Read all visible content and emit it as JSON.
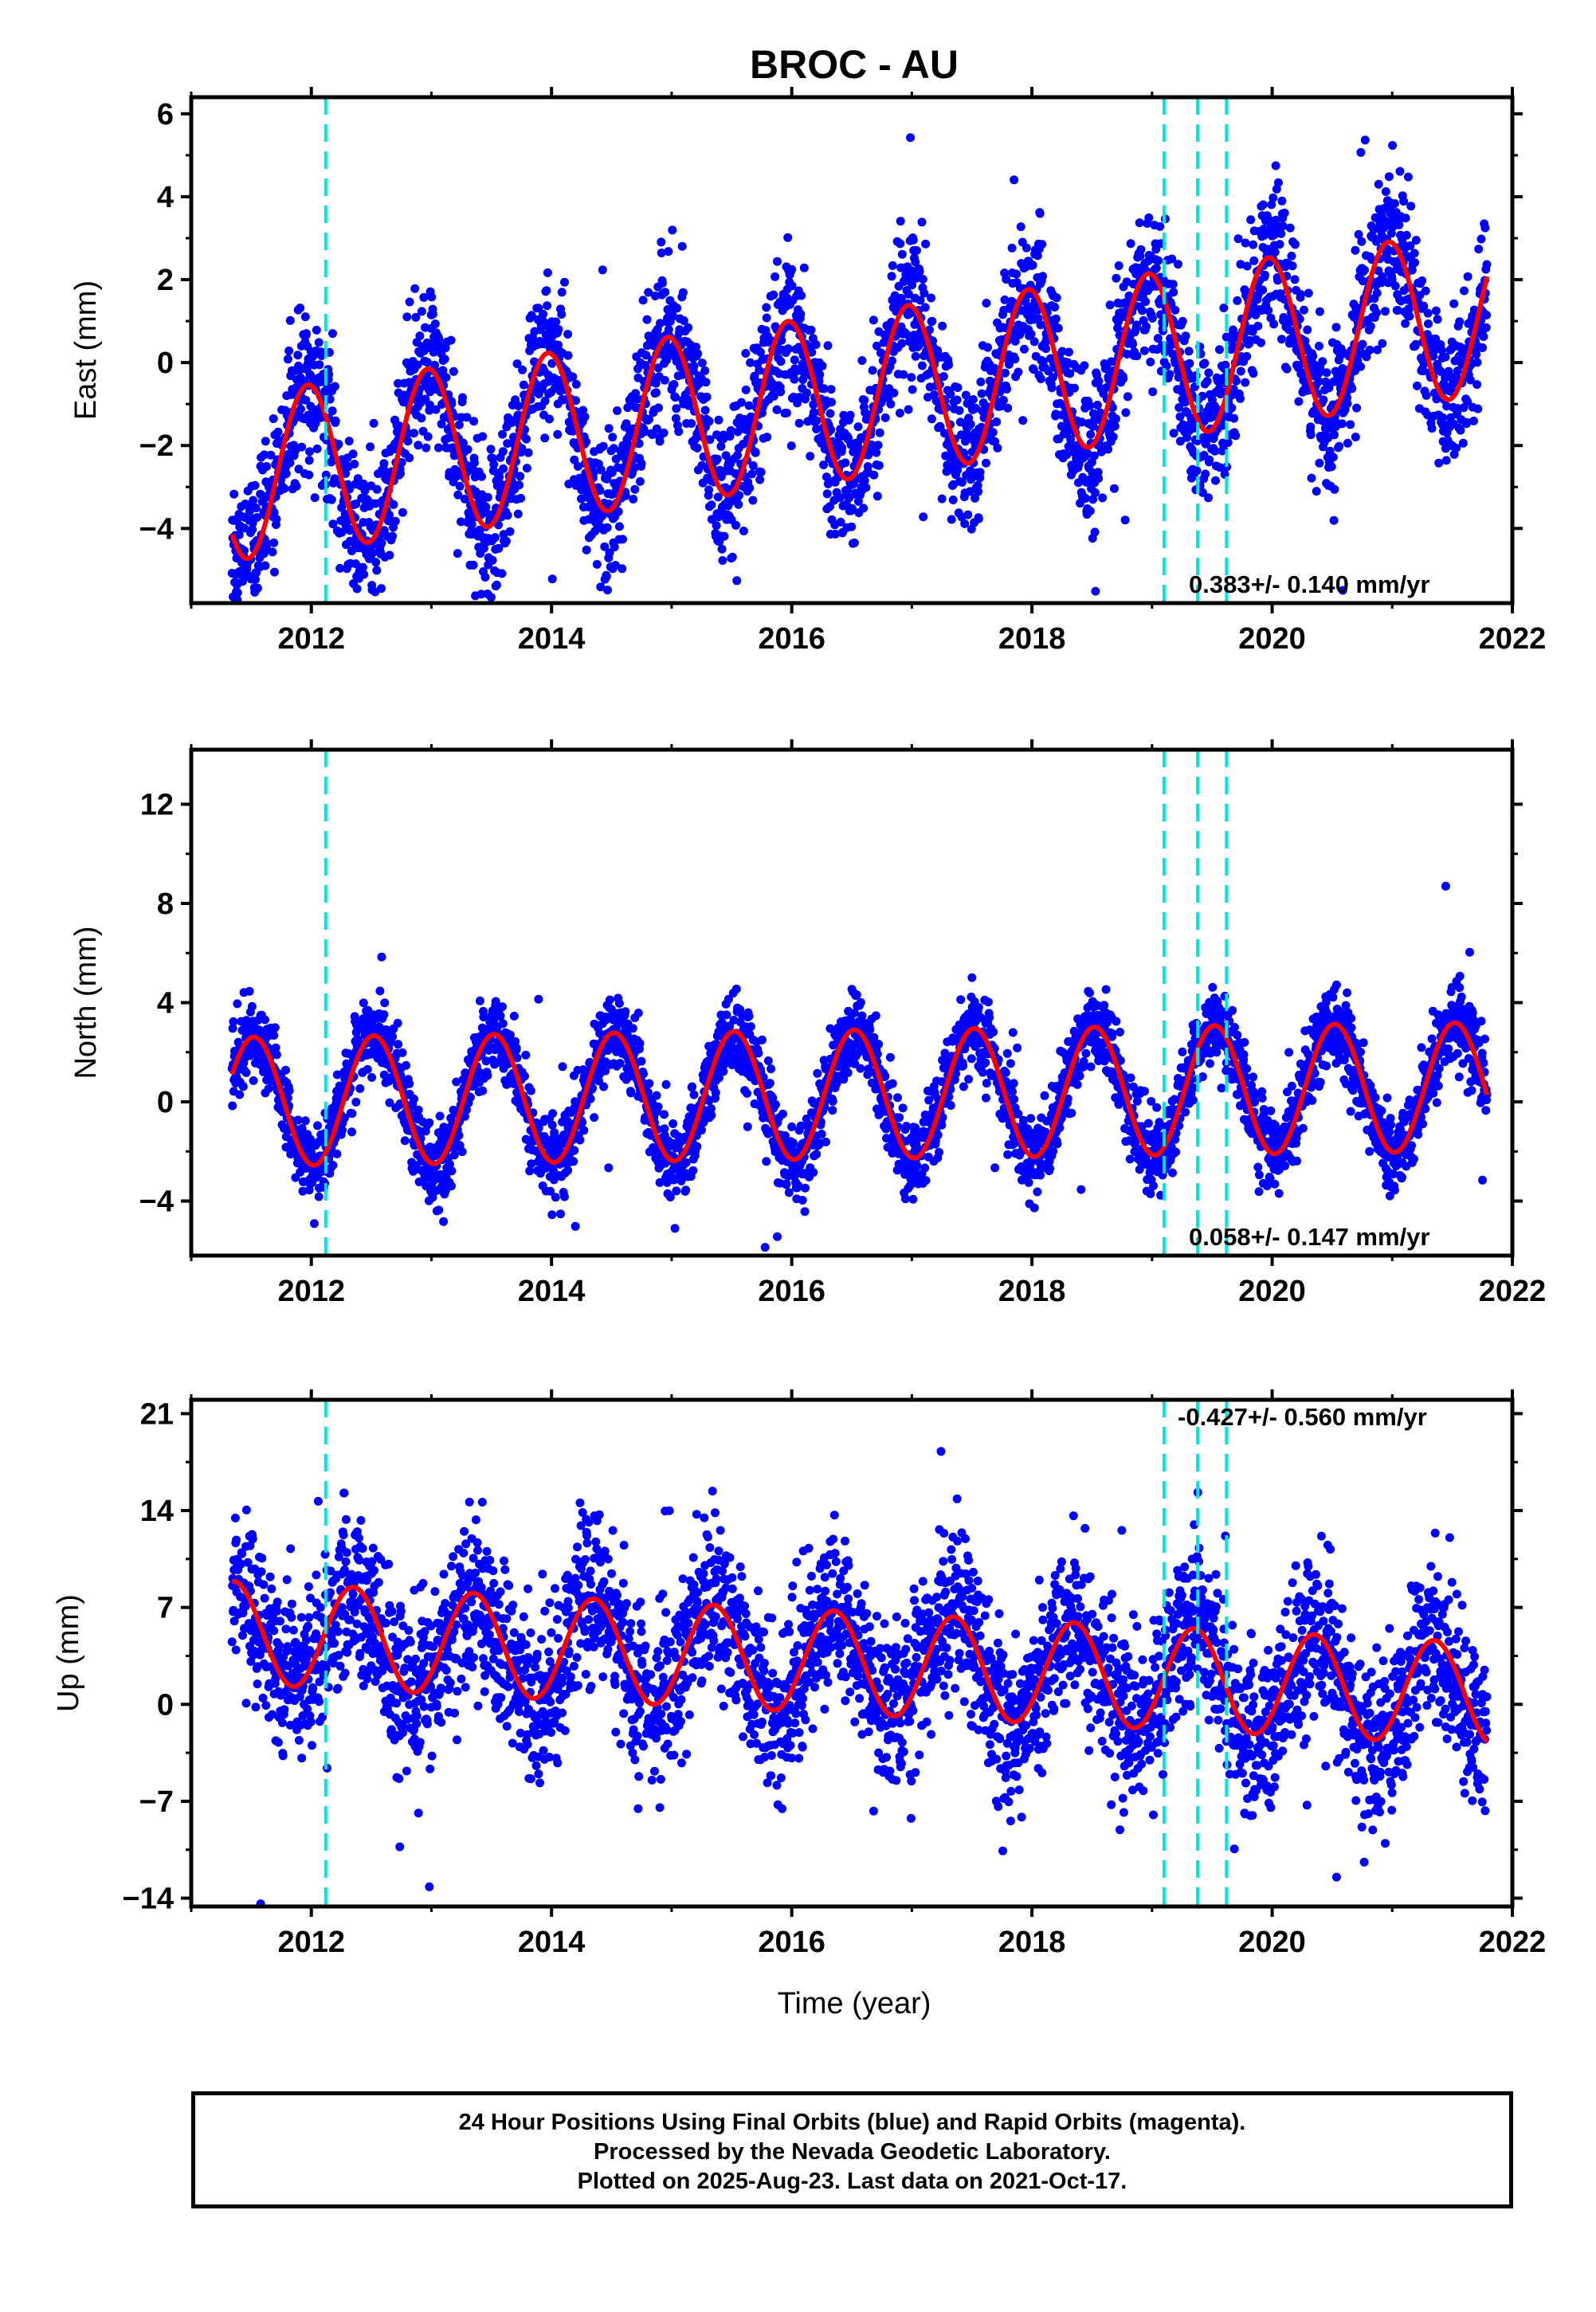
{
  "title": "BROC - AU",
  "x_ticks": [
    "2012",
    "2014",
    "2016",
    "2018",
    "2020",
    "2022"
  ],
  "x_label": "Time (year)",
  "colors": {
    "points": "#0000ff",
    "fit": "#ff0000",
    "events": "#00e5e5",
    "axes": "#000000"
  },
  "chart_data": [
    {
      "type": "scatter",
      "name": "east",
      "ylabel": "East (mm)",
      "yticks": [
        "6",
        "4",
        "2",
        "0",
        "−2",
        "−4"
      ],
      "ylim": [
        -5.8,
        6.4
      ],
      "xlim": [
        2011.0,
        2022.0
      ],
      "rate_label": "0.383+/- 0.140 mm/yr",
      "trend": 0.383,
      "offset": -0.8,
      "amp": 2.0,
      "phase": 0.72,
      "noise": 0.9,
      "event_years": [
        2012.12,
        2019.1,
        2019.38,
        2019.62
      ],
      "data_start": 2011.34,
      "data_end": 2021.79
    },
    {
      "type": "scatter",
      "name": "north",
      "ylabel": "North (mm)",
      "yticks": [
        "12",
        "8",
        "4",
        "0",
        "−4"
      ],
      "ylim": [
        -6.2,
        14.2
      ],
      "xlim": [
        2011.0,
        2022.0
      ],
      "rate_label": "0.058+/- 0.147 mm/yr",
      "trend": 0.058,
      "offset": 0.3,
      "amp": 2.6,
      "phase": 0.27,
      "noise": 0.8,
      "event_years": [
        2012.12,
        2019.1,
        2019.38,
        2019.62
      ],
      "data_start": 2011.34,
      "data_end": 2021.79
    },
    {
      "type": "scatter",
      "name": "up",
      "ylabel": "Up (mm)",
      "yticks": [
        "21",
        "14",
        "7",
        "0",
        "−7",
        "−14"
      ],
      "ylim": [
        -14.6,
        22.0
      ],
      "xlim": [
        2011.0,
        2022.0
      ],
      "rate_label": "-0.427+/- 0.560 mm/yr",
      "trend": -0.427,
      "offset": 3.0,
      "amp": 3.7,
      "phase": 0.1,
      "noise": 3.0,
      "event_years": [
        2012.12,
        2019.1,
        2019.38,
        2019.62
      ],
      "data_start": 2011.34,
      "data_end": 2021.79
    }
  ],
  "footer": {
    "line1": "24 Hour Positions Using Final Orbits (blue) and Rapid Orbits (magenta).",
    "line2": "Processed by the Nevada Geodetic Laboratory.",
    "line3": "Plotted on 2025-Aug-23. Last data on 2021-Oct-17."
  }
}
